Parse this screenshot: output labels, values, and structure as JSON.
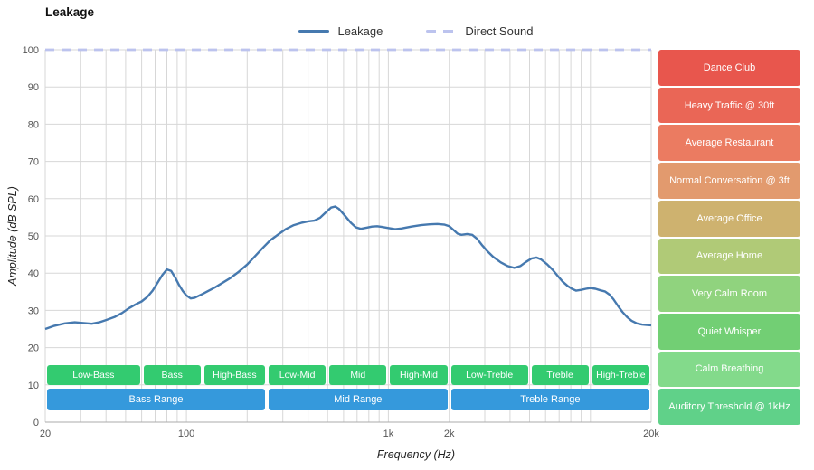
{
  "title": "Leakage",
  "legend": [
    {
      "label": "Leakage",
      "style": "solid",
      "color": "#4679af"
    },
    {
      "label": "Direct Sound",
      "style": "dashed",
      "color": "#bcc3ee"
    }
  ],
  "axes": {
    "x_label": "Frequency (Hz)",
    "y_label": "Amplitude (dB SPL)",
    "x_ticks": [
      {
        "f": 20,
        "label": "20"
      },
      {
        "f": 100,
        "label": "100"
      },
      {
        "f": 1000,
        "label": "1k"
      },
      {
        "f": 2000,
        "label": "2k"
      },
      {
        "f": 20000,
        "label": "20k"
      }
    ],
    "y_ticks": [
      0,
      10,
      20,
      30,
      40,
      50,
      60,
      70,
      80,
      90,
      100
    ]
  },
  "chart_data": {
    "type": "line",
    "title": "Leakage",
    "xlabel": "Frequency (Hz)",
    "ylabel": "Amplitude (dB SPL)",
    "x_scale": "log",
    "xlim": [
      20,
      20000
    ],
    "ylim": [
      0,
      100
    ],
    "grid": true,
    "legend_position": "top-center",
    "series": [
      {
        "name": "Leakage",
        "color": "#4679af",
        "style": "solid",
        "points": [
          [
            20,
            25
          ],
          [
            22,
            25.8
          ],
          [
            25,
            26.5
          ],
          [
            28,
            26.8
          ],
          [
            31,
            26.6
          ],
          [
            34,
            26.4
          ],
          [
            37,
            26.8
          ],
          [
            40,
            27.4
          ],
          [
            44,
            28.2
          ],
          [
            48,
            29.3
          ],
          [
            52,
            30.6
          ],
          [
            56,
            31.6
          ],
          [
            60,
            32.4
          ],
          [
            64,
            33.6
          ],
          [
            68,
            35.3
          ],
          [
            72,
            37.4
          ],
          [
            76,
            39.5
          ],
          [
            80,
            41
          ],
          [
            84,
            40.6
          ],
          [
            88,
            38.8
          ],
          [
            92,
            36.8
          ],
          [
            96,
            35.2
          ],
          [
            100,
            34
          ],
          [
            105,
            33.2
          ],
          [
            110,
            33.4
          ],
          [
            120,
            34.4
          ],
          [
            130,
            35.4
          ],
          [
            140,
            36.3
          ],
          [
            150,
            37.3
          ],
          [
            165,
            38.7
          ],
          [
            180,
            40.2
          ],
          [
            200,
            42.3
          ],
          [
            220,
            44.7
          ],
          [
            240,
            46.9
          ],
          [
            260,
            48.8
          ],
          [
            285,
            50.4
          ],
          [
            310,
            51.8
          ],
          [
            340,
            52.9
          ],
          [
            370,
            53.5
          ],
          [
            400,
            53.9
          ],
          [
            430,
            54.1
          ],
          [
            460,
            54.9
          ],
          [
            490,
            56.3
          ],
          [
            520,
            57.6
          ],
          [
            545,
            57.9
          ],
          [
            570,
            57.2
          ],
          [
            610,
            55.4
          ],
          [
            650,
            53.6
          ],
          [
            690,
            52.3
          ],
          [
            730,
            51.9
          ],
          [
            780,
            52.2
          ],
          [
            830,
            52.5
          ],
          [
            880,
            52.6
          ],
          [
            930,
            52.4
          ],
          [
            1000,
            52.1
          ],
          [
            1080,
            51.8
          ],
          [
            1160,
            52
          ],
          [
            1300,
            52.5
          ],
          [
            1450,
            52.9
          ],
          [
            1600,
            53.1
          ],
          [
            1750,
            53.2
          ],
          [
            1900,
            53
          ],
          [
            2000,
            52.6
          ],
          [
            2100,
            51.6
          ],
          [
            2200,
            50.6
          ],
          [
            2300,
            50.3
          ],
          [
            2450,
            50.5
          ],
          [
            2600,
            50.3
          ],
          [
            2750,
            49.2
          ],
          [
            2900,
            47.6
          ],
          [
            3100,
            45.8
          ],
          [
            3300,
            44.4
          ],
          [
            3600,
            42.9
          ],
          [
            3900,
            41.9
          ],
          [
            4200,
            41.4
          ],
          [
            4500,
            41.9
          ],
          [
            4800,
            43
          ],
          [
            5100,
            43.9
          ],
          [
            5400,
            44.2
          ],
          [
            5700,
            43.7
          ],
          [
            6100,
            42.4
          ],
          [
            6500,
            40.9
          ],
          [
            6900,
            39.2
          ],
          [
            7300,
            37.7
          ],
          [
            7700,
            36.6
          ],
          [
            8100,
            35.8
          ],
          [
            8500,
            35.3
          ],
          [
            9000,
            35.5
          ],
          [
            9500,
            35.8
          ],
          [
            10000,
            36
          ],
          [
            10600,
            35.8
          ],
          [
            11200,
            35.4
          ],
          [
            11800,
            35.1
          ],
          [
            12400,
            34.3
          ],
          [
            13000,
            33
          ],
          [
            13700,
            31.2
          ],
          [
            14400,
            29.6
          ],
          [
            15200,
            28.2
          ],
          [
            16000,
            27.2
          ],
          [
            17000,
            26.5
          ],
          [
            18000,
            26.2
          ],
          [
            19000,
            26.1
          ],
          [
            20000,
            26
          ]
        ]
      },
      {
        "name": "Direct Sound",
        "color": "#bcc3ee",
        "style": "dashed",
        "points": [
          [
            20,
            100
          ],
          [
            20000,
            100
          ]
        ]
      }
    ]
  },
  "bands": {
    "sub_color": "#33cb70",
    "main_color": "#3599dc",
    "sub": [
      {
        "label": "Low-Bass",
        "range": [
          20,
          60
        ]
      },
      {
        "label": "Bass",
        "range": [
          60,
          120
        ]
      },
      {
        "label": "High-Bass",
        "range": [
          120,
          250
        ]
      },
      {
        "label": "Low-Mid",
        "range": [
          250,
          500
        ]
      },
      {
        "label": "Mid",
        "range": [
          500,
          1000
        ]
      },
      {
        "label": "High-Mid",
        "range": [
          1000,
          2000
        ]
      },
      {
        "label": "Low-Treble",
        "range": [
          2000,
          5000
        ]
      },
      {
        "label": "Treble",
        "range": [
          5000,
          10000
        ]
      },
      {
        "label": "High-Treble",
        "range": [
          10000,
          20000
        ]
      }
    ],
    "main": [
      {
        "label": "Bass Range",
        "range": [
          20,
          250
        ]
      },
      {
        "label": "Mid Range",
        "range": [
          250,
          2000
        ]
      },
      {
        "label": "Treble Range",
        "range": [
          2000,
          20000
        ]
      }
    ]
  },
  "noise_levels": [
    {
      "label": "Dance Club",
      "color": "#e8564d"
    },
    {
      "label": "Heavy Traffic @ 30ft",
      "color": "#ea6656"
    },
    {
      "label": "Average Restaurant",
      "color": "#eb7b61"
    },
    {
      "label": "Normal Conversation @ 3ft",
      "color": "#e29a6e"
    },
    {
      "label": "Average Office",
      "color": "#ceb26f"
    },
    {
      "label": "Average Home",
      "color": "#b0ca77"
    },
    {
      "label": "Very Calm Room",
      "color": "#90d37e"
    },
    {
      "label": "Quiet Whisper",
      "color": "#72cf74"
    },
    {
      "label": "Calm Breathing",
      "color": "#83da8b"
    },
    {
      "label": "Auditory Threshold @ 1kHz",
      "color": "#60d189"
    }
  ]
}
